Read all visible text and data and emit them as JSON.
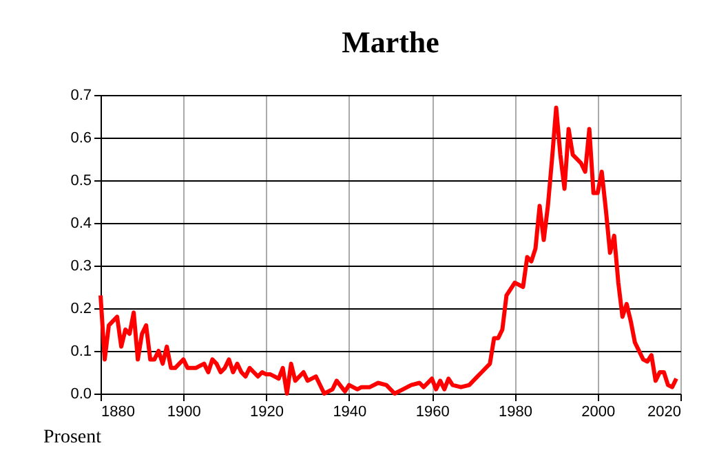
{
  "chart_data": {
    "type": "line",
    "title": "Marthe",
    "ylabel": "Prosent",
    "x": [
      1880,
      1881,
      1882,
      1883,
      1884,
      1885,
      1886,
      1887,
      1888,
      1889,
      1890,
      1891,
      1892,
      1893,
      1894,
      1895,
      1896,
      1897,
      1898,
      1899,
      1900,
      1901,
      1902,
      1903,
      1904,
      1905,
      1906,
      1907,
      1908,
      1909,
      1910,
      1911,
      1912,
      1913,
      1914,
      1915,
      1916,
      1917,
      1918,
      1919,
      1920,
      1921,
      1922,
      1923,
      1924,
      1925,
      1926,
      1927,
      1929,
      1930,
      1932,
      1934,
      1936,
      1937,
      1939,
      1940,
      1942,
      1943,
      1945,
      1947,
      1949,
      1951,
      1953,
      1955,
      1957,
      1958,
      1960,
      1961,
      1962,
      1963,
      1964,
      1965,
      1967,
      1969,
      1971,
      1972,
      1974,
      1975,
      1976,
      1977,
      1978,
      1980,
      1982,
      1983,
      1984,
      1985,
      1986,
      1987,
      1988,
      1989,
      1990,
      1991,
      1992,
      1993,
      1994,
      1996,
      1997,
      1998,
      1999,
      2000,
      2001,
      2002,
      2003,
      2004,
      2005,
      2006,
      2007,
      2008,
      2009,
      2011,
      2012,
      2013,
      2014,
      2015,
      2016,
      2017,
      2018,
      2019
    ],
    "series": [
      {
        "color": "#ff0000",
        "values": [
          0.23,
          0.08,
          0.16,
          0.17,
          0.18,
          0.11,
          0.15,
          0.14,
          0.19,
          0.08,
          0.14,
          0.16,
          0.08,
          0.08,
          0.1,
          0.07,
          0.11,
          0.06,
          0.06,
          0.07,
          0.08,
          0.06,
          0.06,
          0.06,
          0.065,
          0.07,
          0.05,
          0.08,
          0.07,
          0.05,
          0.06,
          0.08,
          0.05,
          0.07,
          0.05,
          0.04,
          0.06,
          0.05,
          0.04,
          0.05,
          0.045,
          0.045,
          0.04,
          0.035,
          0.06,
          0.0,
          0.07,
          0.03,
          0.05,
          0.03,
          0.04,
          0.0,
          0.01,
          0.03,
          0.005,
          0.02,
          0.01,
          0.015,
          0.015,
          0.025,
          0.02,
          0.0,
          0.01,
          0.02,
          0.025,
          0.015,
          0.035,
          0.01,
          0.03,
          0.01,
          0.035,
          0.02,
          0.015,
          0.02,
          0.04,
          0.05,
          0.07,
          0.13,
          0.13,
          0.15,
          0.23,
          0.26,
          0.25,
          0.32,
          0.31,
          0.34,
          0.44,
          0.36,
          0.44,
          0.55,
          0.67,
          0.56,
          0.48,
          0.62,
          0.56,
          0.54,
          0.52,
          0.62,
          0.47,
          0.47,
          0.52,
          0.43,
          0.33,
          0.37,
          0.26,
          0.18,
          0.21,
          0.17,
          0.12,
          0.08,
          0.075,
          0.09,
          0.03,
          0.05,
          0.05,
          0.02,
          0.015,
          0.035
        ]
      }
    ],
    "xlim": [
      1880,
      2020
    ],
    "xticks": [
      1880,
      1900,
      1920,
      1940,
      1960,
      1980,
      2000,
      2020
    ],
    "ylim": [
      0,
      0.7
    ],
    "yticks": [
      {
        "value": 0,
        "label": "0.0"
      },
      0.1,
      0.2,
      0.3,
      0.4,
      0.5,
      0.6,
      0.7
    ],
    "grid": true,
    "legend": false
  }
}
